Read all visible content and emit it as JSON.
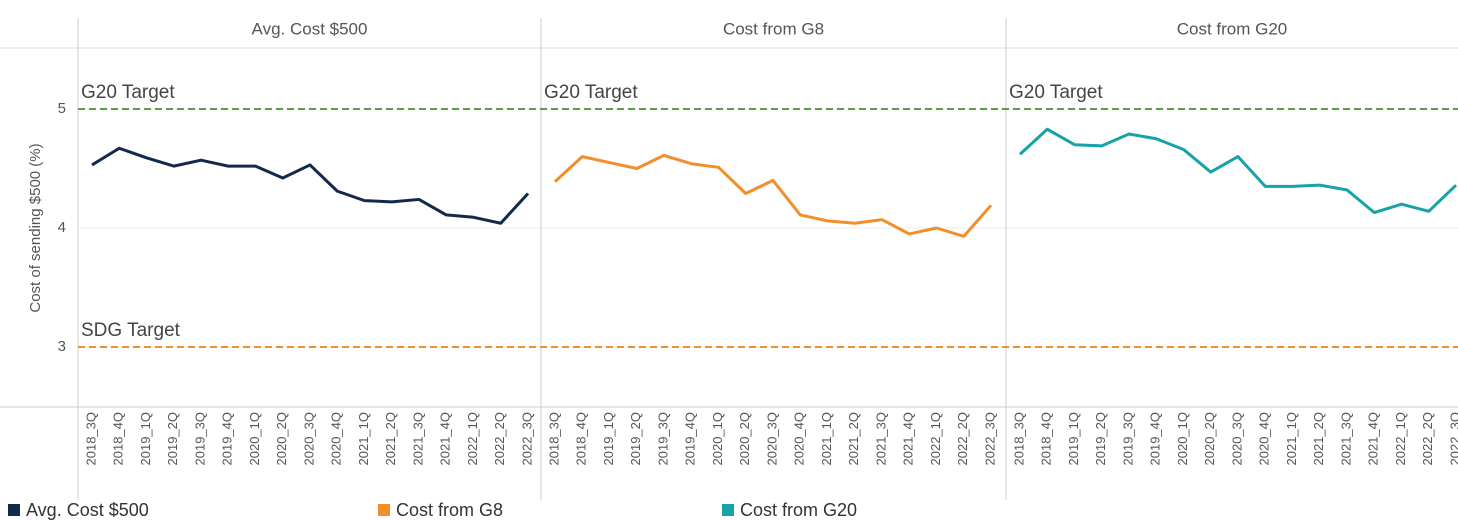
{
  "chart_data": {
    "type": "line",
    "y_label": "Cost of sending $500 (%)",
    "categories": [
      "2018_3Q",
      "2018_4Q",
      "2019_1Q",
      "2019_2Q",
      "2019_3Q",
      "2019_4Q",
      "2020_1Q",
      "2020_2Q",
      "2020_3Q",
      "2020_4Q",
      "2021_1Q",
      "2021_2Q",
      "2021_3Q",
      "2021_4Q",
      "2022_1Q",
      "2022_2Q",
      "2022_3Q"
    ],
    "series": [
      {
        "name": "Avg. Cost $500",
        "color": "#13294b",
        "values": [
          4.53,
          4.67,
          4.59,
          4.52,
          4.57,
          4.52,
          4.52,
          4.42,
          4.53,
          4.31,
          4.23,
          4.22,
          4.24,
          4.11,
          4.09,
          4.04,
          4.29
        ]
      },
      {
        "name": "Cost from G8",
        "color": "#f28e2b",
        "values": [
          4.39,
          4.6,
          4.55,
          4.5,
          4.61,
          4.54,
          4.51,
          4.29,
          4.4,
          4.11,
          4.06,
          4.04,
          4.07,
          3.95,
          4.0,
          3.93,
          4.19
        ]
      },
      {
        "name": "Cost from G20",
        "color": "#17a2a8",
        "values": [
          4.62,
          4.83,
          4.7,
          4.69,
          4.79,
          4.75,
          4.66,
          4.47,
          4.6,
          4.35,
          4.35,
          4.36,
          4.32,
          4.13,
          4.2,
          4.14,
          4.36
        ]
      }
    ],
    "reference_lines": [
      {
        "label": "G20 Target",
        "value": 5,
        "color": "#5a9e48",
        "labeled_panels": [
          0,
          1,
          2
        ]
      },
      {
        "label": "SDG Target",
        "value": 3,
        "color": "#f28e2b",
        "labeled_panels": [
          0
        ]
      }
    ],
    "ylim": [
      2.5,
      5.5
    ],
    "yticks": [
      3,
      4,
      5
    ],
    "grid": true
  }
}
